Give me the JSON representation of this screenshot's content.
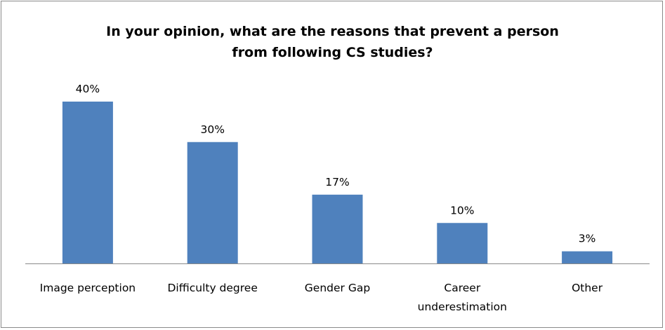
{
  "chart_data": {
    "type": "bar",
    "title_lines": [
      "In your opinion, what are the reasons that prevent a person",
      "from following CS studies?"
    ],
    "categories": [
      [
        "Image perception"
      ],
      [
        "Difficulty degree"
      ],
      [
        "Gender Gap"
      ],
      [
        "Career",
        "underestimation"
      ],
      [
        "Other"
      ]
    ],
    "values": [
      40,
      30,
      17,
      10,
      3
    ],
    "data_labels": [
      "40%",
      "30%",
      "17%",
      "10%",
      "3%"
    ],
    "value_unit": "%",
    "ylim": [
      0,
      40
    ],
    "grid": false,
    "legend": "none",
    "colors": {
      "bar": "#4F81BD",
      "axis": "#8a8a8a"
    }
  }
}
